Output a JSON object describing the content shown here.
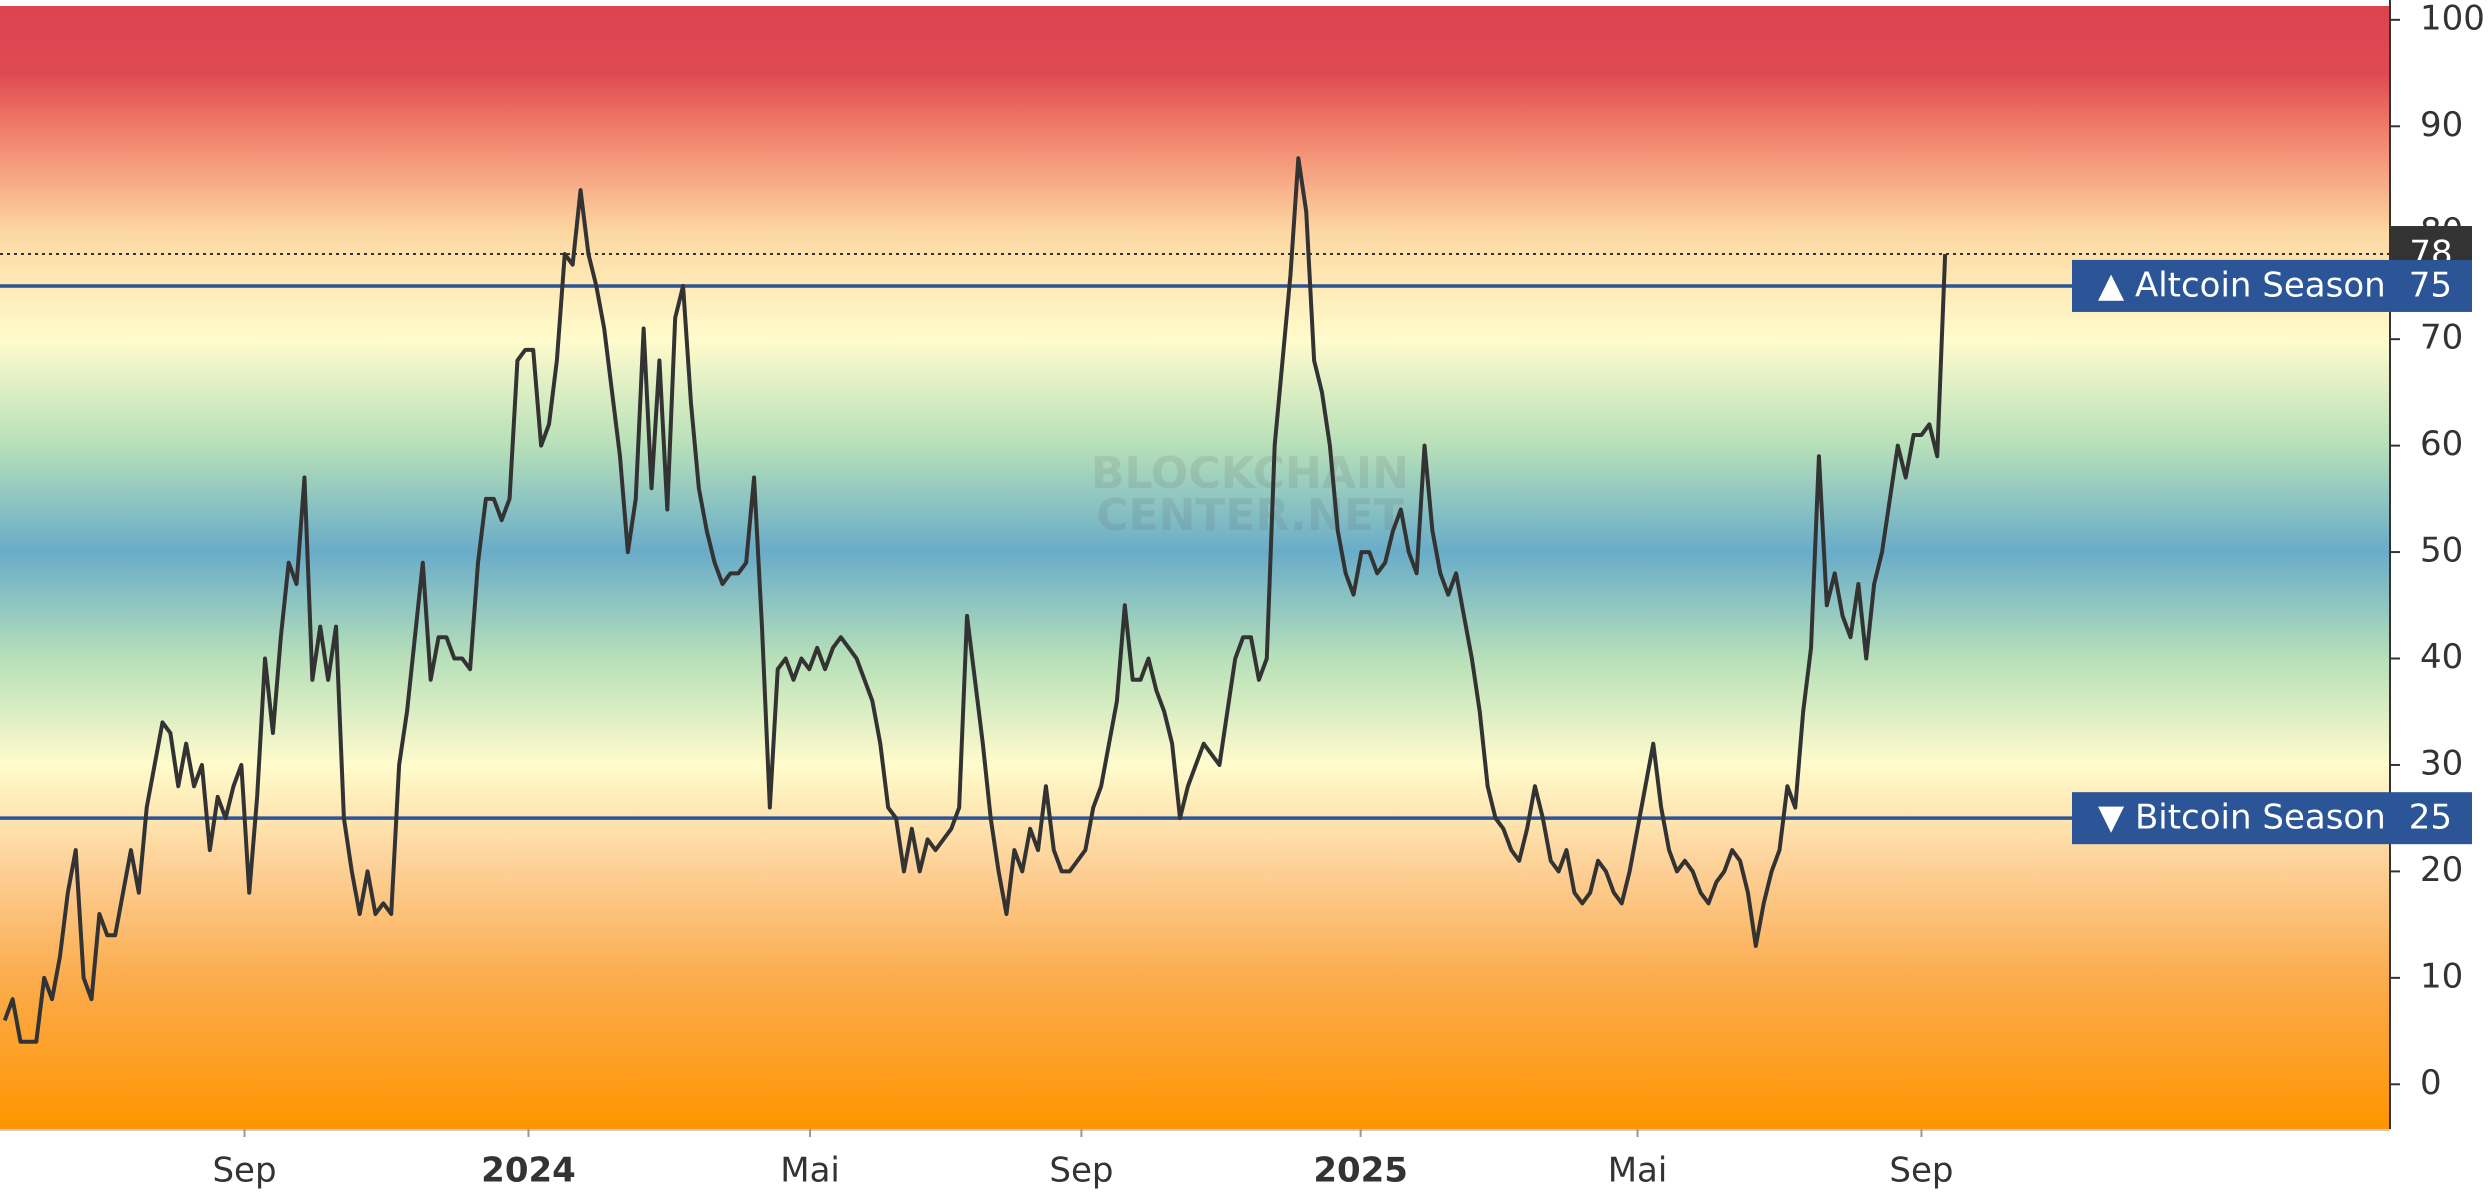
{
  "chart_data": {
    "type": "line",
    "x": [
      0,
      1,
      2,
      3,
      4,
      5,
      6,
      7,
      8,
      9,
      10,
      11,
      12,
      13,
      14,
      15,
      16,
      17,
      18,
      19,
      20,
      21,
      22,
      23,
      24,
      25,
      26,
      27,
      28,
      29,
      30,
      31,
      32,
      33,
      34,
      35,
      36,
      37,
      38,
      39,
      40,
      41,
      42,
      43,
      44,
      45,
      46,
      47,
      48,
      49,
      50,
      51,
      52,
      53,
      54,
      55,
      56,
      57,
      58,
      59,
      60,
      61,
      62,
      63,
      64,
      65,
      66,
      67,
      68,
      69,
      70,
      71,
      72,
      73,
      74,
      75,
      76,
      77,
      78,
      79,
      80,
      81,
      82,
      83,
      84,
      85,
      86,
      87,
      88,
      89,
      90,
      91,
      92,
      93,
      94,
      95,
      96,
      97,
      98,
      99,
      100,
      101,
      102,
      103,
      104,
      105,
      106,
      107,
      108,
      109,
      110,
      111,
      112,
      113,
      114,
      115,
      116,
      117,
      118,
      119,
      120,
      121,
      122,
      123,
      124,
      125,
      126,
      127,
      128,
      129,
      130,
      131,
      132,
      133,
      134,
      135,
      136,
      137,
      138,
      139,
      140,
      141,
      142,
      143,
      144,
      145,
      146,
      147,
      148,
      149,
      150,
      151,
      152,
      153,
      154,
      155,
      156,
      157,
      158,
      159,
      160,
      161,
      162,
      163,
      164,
      165,
      166,
      167,
      168,
      169,
      170,
      171,
      172,
      173,
      174,
      175,
      176,
      177,
      178,
      179,
      180,
      181,
      182,
      183,
      184,
      185,
      186,
      187,
      188,
      189,
      190,
      191,
      192,
      193,
      194,
      195,
      196,
      197,
      198,
      199,
      200,
      201,
      202,
      203,
      204,
      205,
      206,
      207,
      208,
      209,
      210,
      211,
      212,
      213,
      214,
      215,
      216,
      217,
      218,
      219,
      220,
      221,
      222,
      223,
      224,
      225,
      226,
      227,
      228,
      229,
      230,
      231,
      232,
      233,
      234,
      235,
      236,
      237,
      238,
      239,
      240,
      241,
      242,
      243,
      244,
      245,
      246
    ],
    "series": [
      {
        "color": "#333333",
        "values": [
          6,
          8,
          4,
          4,
          4,
          10,
          8,
          12,
          18,
          22,
          10,
          8,
          16,
          14,
          14,
          18,
          22,
          18,
          26,
          30,
          34,
          33,
          28,
          32,
          28,
          30,
          22,
          27,
          25,
          28,
          30,
          18,
          27,
          40,
          33,
          42,
          49,
          47,
          57,
          38,
          43,
          38,
          43,
          25,
          20,
          16,
          20,
          16,
          17,
          16,
          30,
          35,
          42,
          49,
          38,
          42,
          42,
          40,
          40,
          39,
          49,
          55,
          55,
          53,
          55,
          68,
          69,
          69,
          60,
          62,
          68,
          78,
          77,
          84,
          78,
          75,
          71,
          65,
          59,
          50,
          55,
          71,
          56,
          68,
          54,
          72,
          75,
          64,
          56,
          52,
          49,
          47,
          48,
          48,
          49,
          57,
          43,
          26,
          39,
          40,
          38,
          40,
          39,
          41,
          39,
          41,
          42,
          41,
          40,
          38,
          36,
          32,
          26,
          25,
          20,
          24,
          20,
          23,
          22,
          23,
          24,
          26,
          44,
          38,
          32,
          25,
          20,
          16,
          22,
          20,
          24,
          22,
          28,
          22,
          20,
          20,
          21,
          22,
          26,
          28,
          32,
          36,
          45,
          38,
          38,
          40,
          37,
          35,
          32,
          25,
          28,
          30,
          32,
          31,
          30,
          35,
          40,
          42,
          42,
          38,
          40,
          60,
          68,
          76,
          87,
          82,
          68,
          65,
          60,
          52,
          48,
          46,
          50,
          50,
          48,
          49,
          52,
          54,
          50,
          48,
          60,
          52,
          48,
          46,
          48,
          44,
          40,
          35,
          28,
          25,
          24,
          22,
          21,
          24,
          28,
          25,
          21,
          20,
          22,
          18,
          17,
          18,
          21,
          20,
          18,
          17,
          20,
          24,
          28,
          32,
          26,
          22,
          20,
          21,
          20,
          18,
          17,
          19,
          20,
          22,
          21,
          18,
          13,
          17,
          20,
          22,
          28,
          26,
          35,
          41,
          59,
          45,
          48,
          44,
          42,
          47,
          40,
          47,
          50,
          55,
          60,
          57,
          61,
          61,
          62,
          59,
          78
        ]
      }
    ],
    "xlim": [
      -0.6,
      302.4
    ],
    "xticks": [
      {
        "value": 30.4,
        "label": "Sep"
      },
      {
        "value": 66.4,
        "label": "2024"
      },
      {
        "value": 102.1,
        "label": "Mai"
      },
      {
        "value": 136.5,
        "label": "Sep"
      },
      {
        "value": 171.9,
        "label": "2025"
      },
      {
        "value": 207.0,
        "label": "Mai"
      },
      {
        "value": 243.0,
        "label": "Sep"
      }
    ],
    "ylim": [
      -4.2,
      101.3
    ],
    "yticks": [
      0,
      10,
      20,
      30,
      40,
      50,
      60,
      70,
      80,
      90,
      100
    ],
    "annotations": [
      {
        "label": "▲ Altcoin Season",
        "value": 75,
        "color": "#2b5597"
      },
      {
        "label": "▼ Bitcoin Season",
        "value": 25,
        "color": "#2b5597"
      }
    ],
    "watermark": [
      "BLOCKCHAIN",
      "CENTER.NET"
    ]
  }
}
